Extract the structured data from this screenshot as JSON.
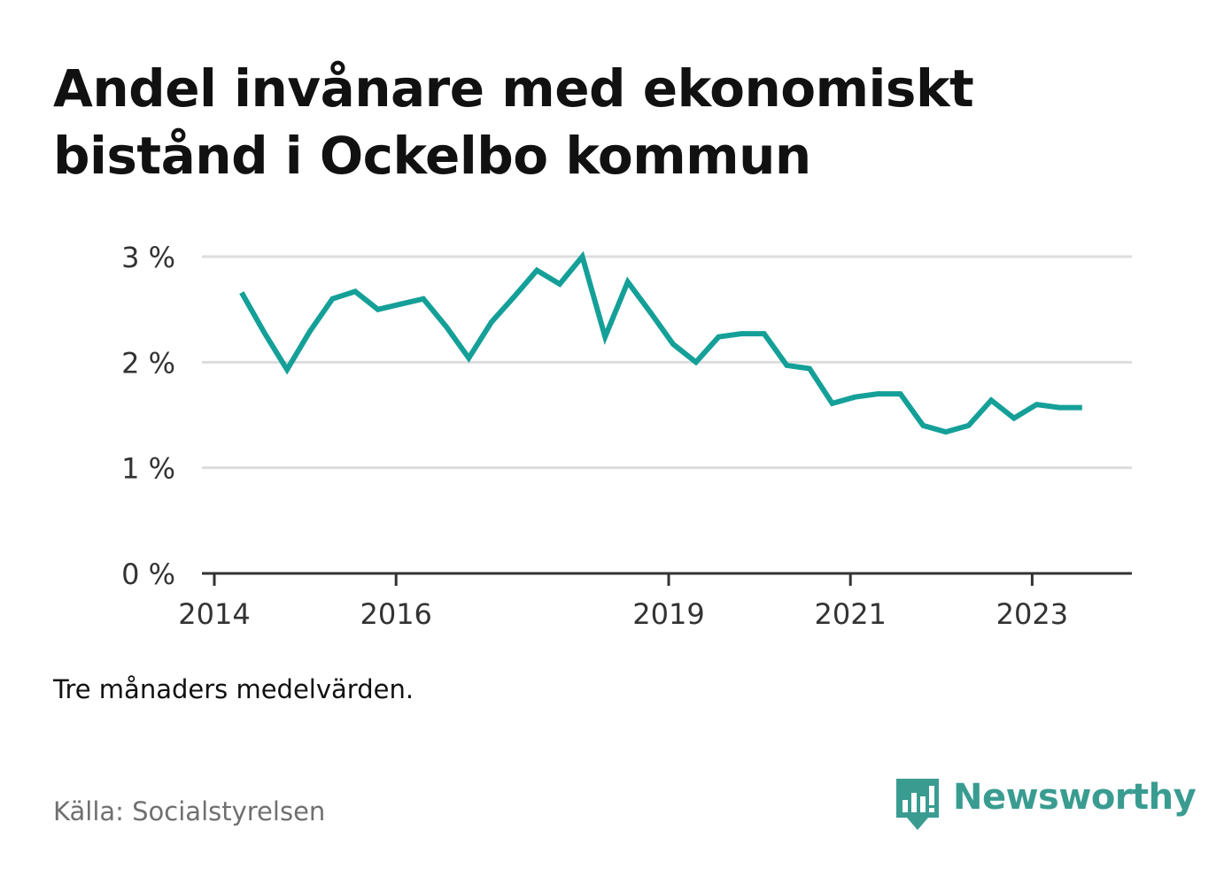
{
  "title": "Andel invånare med ekonomiskt bistånd i Ockelbo kommun",
  "note": "Tre månaders medelvärden.",
  "source": "Källa: Socialstyrelsen",
  "brand": {
    "name": "Newsworthy",
    "icon": "newsworthy-bar-chart-speech-bubble-icon",
    "color": "#3a9c91"
  },
  "chart_data": {
    "type": "line",
    "title": "Andel invånare med ekonomiskt bistånd i Ockelbo kommun",
    "xlabel": "",
    "ylabel": "",
    "ylim": [
      0,
      3
    ],
    "xlim": [
      2014.0,
      2024.0
    ],
    "y_ticks": [
      0,
      1,
      2,
      3
    ],
    "y_tick_labels": [
      "0 %",
      "1 %",
      "2 %",
      "3 %"
    ],
    "x_ticks": [
      2014,
      2016,
      2019,
      2021,
      2023
    ],
    "x_tick_labels": [
      "2014",
      "2016",
      "2019",
      "2021",
      "2023"
    ],
    "grid": true,
    "line_color": "#14a098",
    "series": [
      {
        "x": [
          2014.3,
          2014.55,
          2014.8,
          2015.05,
          2015.3,
          2015.55,
          2015.8,
          2016.05,
          2016.3,
          2016.55,
          2016.8,
          2017.05,
          2017.3,
          2017.55,
          2017.8,
          2018.05,
          2018.3,
          2018.55,
          2018.8,
          2019.05,
          2019.3,
          2019.55,
          2019.8,
          2020.05,
          2020.3,
          2020.55,
          2020.8,
          2021.05,
          2021.3,
          2021.55,
          2021.8,
          2022.05,
          2022.3,
          2022.55,
          2022.8,
          2023.05,
          2023.3,
          2023.55
        ],
        "values": [
          2.66,
          2.28,
          1.93,
          2.29,
          2.6,
          2.67,
          2.5,
          2.55,
          2.6,
          2.34,
          2.04,
          2.38,
          2.62,
          2.87,
          2.74,
          3.0,
          2.24,
          2.76,
          2.47,
          2.17,
          2.0,
          2.24,
          2.27,
          2.27,
          1.97,
          1.94,
          1.61,
          1.67,
          1.7,
          1.7,
          1.4,
          1.34,
          1.4,
          1.64,
          1.47,
          1.6,
          1.57,
          1.57
        ]
      }
    ]
  }
}
